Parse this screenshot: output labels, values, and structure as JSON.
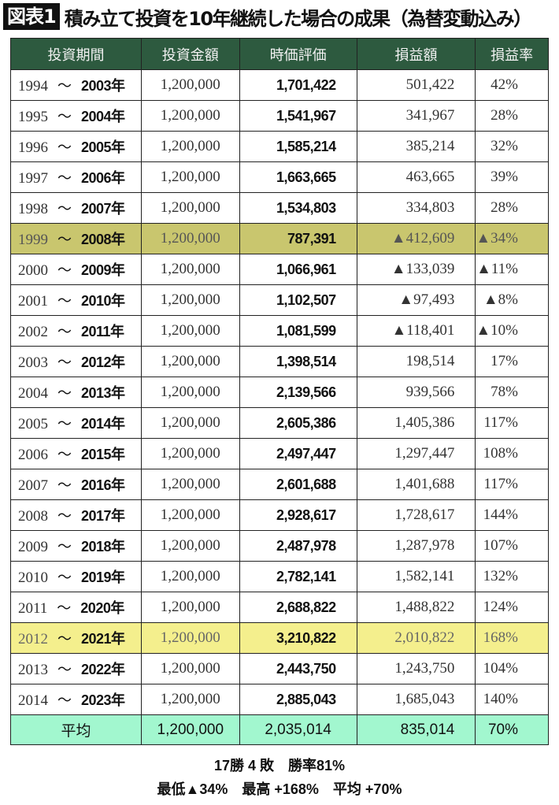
{
  "title": {
    "badge": "図表1",
    "text": "積み立て投資を10年継続した場合の成果（為替変動込み）"
  },
  "colors": {
    "header": "#2d5a3f",
    "loss_row": "#c9c66e",
    "best_row": "#f4ef8d",
    "average_row": "#a2f7cf"
  },
  "table": {
    "headers": [
      "投資期間",
      "投資金額",
      "時価評価",
      "損益額",
      "損益率"
    ],
    "tilde": "～",
    "rows": [
      {
        "start": "1994",
        "end": "2003年",
        "invest": "1,200,000",
        "value": "1,701,422",
        "gain": "501,422",
        "rate": "42%"
      },
      {
        "start": "1995",
        "end": "2004年",
        "invest": "1,200,000",
        "value": "1,541,967",
        "gain": "341,967",
        "rate": "28%"
      },
      {
        "start": "1996",
        "end": "2005年",
        "invest": "1,200,000",
        "value": "1,585,214",
        "gain": "385,214",
        "rate": "32%"
      },
      {
        "start": "1997",
        "end": "2006年",
        "invest": "1,200,000",
        "value": "1,663,665",
        "gain": "463,665",
        "rate": "39%"
      },
      {
        "start": "1998",
        "end": "2007年",
        "invest": "1,200,000",
        "value": "1,534,803",
        "gain": "334,803",
        "rate": "28%"
      },
      {
        "start": "1999",
        "end": "2008年",
        "invest": "1,200,000",
        "value": "787,391",
        "gain": "▲412,609",
        "rate": "▲34%",
        "highlight": "loss"
      },
      {
        "start": "2000",
        "end": "2009年",
        "invest": "1,200,000",
        "value": "1,066,961",
        "gain": "▲133,039",
        "rate": "▲11%"
      },
      {
        "start": "2001",
        "end": "2010年",
        "invest": "1,200,000",
        "value": "1,102,507",
        "gain": "▲97,493",
        "rate": "▲8%"
      },
      {
        "start": "2002",
        "end": "2011年",
        "invest": "1,200,000",
        "value": "1,081,599",
        "gain": "▲118,401",
        "rate": "▲10%"
      },
      {
        "start": "2003",
        "end": "2012年",
        "invest": "1,200,000",
        "value": "1,398,514",
        "gain": "198,514",
        "rate": "17%"
      },
      {
        "start": "2004",
        "end": "2013年",
        "invest": "1,200,000",
        "value": "2,139,566",
        "gain": "939,566",
        "rate": "78%"
      },
      {
        "start": "2005",
        "end": "2014年",
        "invest": "1,200,000",
        "value": "2,605,386",
        "gain": "1,405,386",
        "rate": "117%"
      },
      {
        "start": "2006",
        "end": "2015年",
        "invest": "1,200,000",
        "value": "2,497,447",
        "gain": "1,297,447",
        "rate": "108%"
      },
      {
        "start": "2007",
        "end": "2016年",
        "invest": "1,200,000",
        "value": "2,601,688",
        "gain": "1,401,688",
        "rate": "117%"
      },
      {
        "start": "2008",
        "end": "2017年",
        "invest": "1,200,000",
        "value": "2,928,617",
        "gain": "1,728,617",
        "rate": "144%"
      },
      {
        "start": "2009",
        "end": "2018年",
        "invest": "1,200,000",
        "value": "2,487,978",
        "gain": "1,287,978",
        "rate": "107%"
      },
      {
        "start": "2010",
        "end": "2019年",
        "invest": "1,200,000",
        "value": "2,782,141",
        "gain": "1,582,141",
        "rate": "132%"
      },
      {
        "start": "2011",
        "end": "2020年",
        "invest": "1,200,000",
        "value": "2,688,822",
        "gain": "1,488,822",
        "rate": "124%"
      },
      {
        "start": "2012",
        "end": "2021年",
        "invest": "1,200,000",
        "value": "3,210,822",
        "gain": "2,010,822",
        "rate": "168%",
        "highlight": "best"
      },
      {
        "start": "2013",
        "end": "2022年",
        "invest": "1,200,000",
        "value": "2,443,750",
        "gain": "1,243,750",
        "rate": "104%"
      },
      {
        "start": "2014",
        "end": "2023年",
        "invest": "1,200,000",
        "value": "2,885,043",
        "gain": "1,685,043",
        "rate": "140%"
      }
    ],
    "average": {
      "label": "平均",
      "invest": "1,200,000",
      "value": "2,035,014",
      "gain": "835,014",
      "rate": "70%"
    }
  },
  "summary": {
    "line1": "17勝 4 敗　勝率81%",
    "line2": "最低▲34%　最高 +168%　平均 +70%"
  }
}
